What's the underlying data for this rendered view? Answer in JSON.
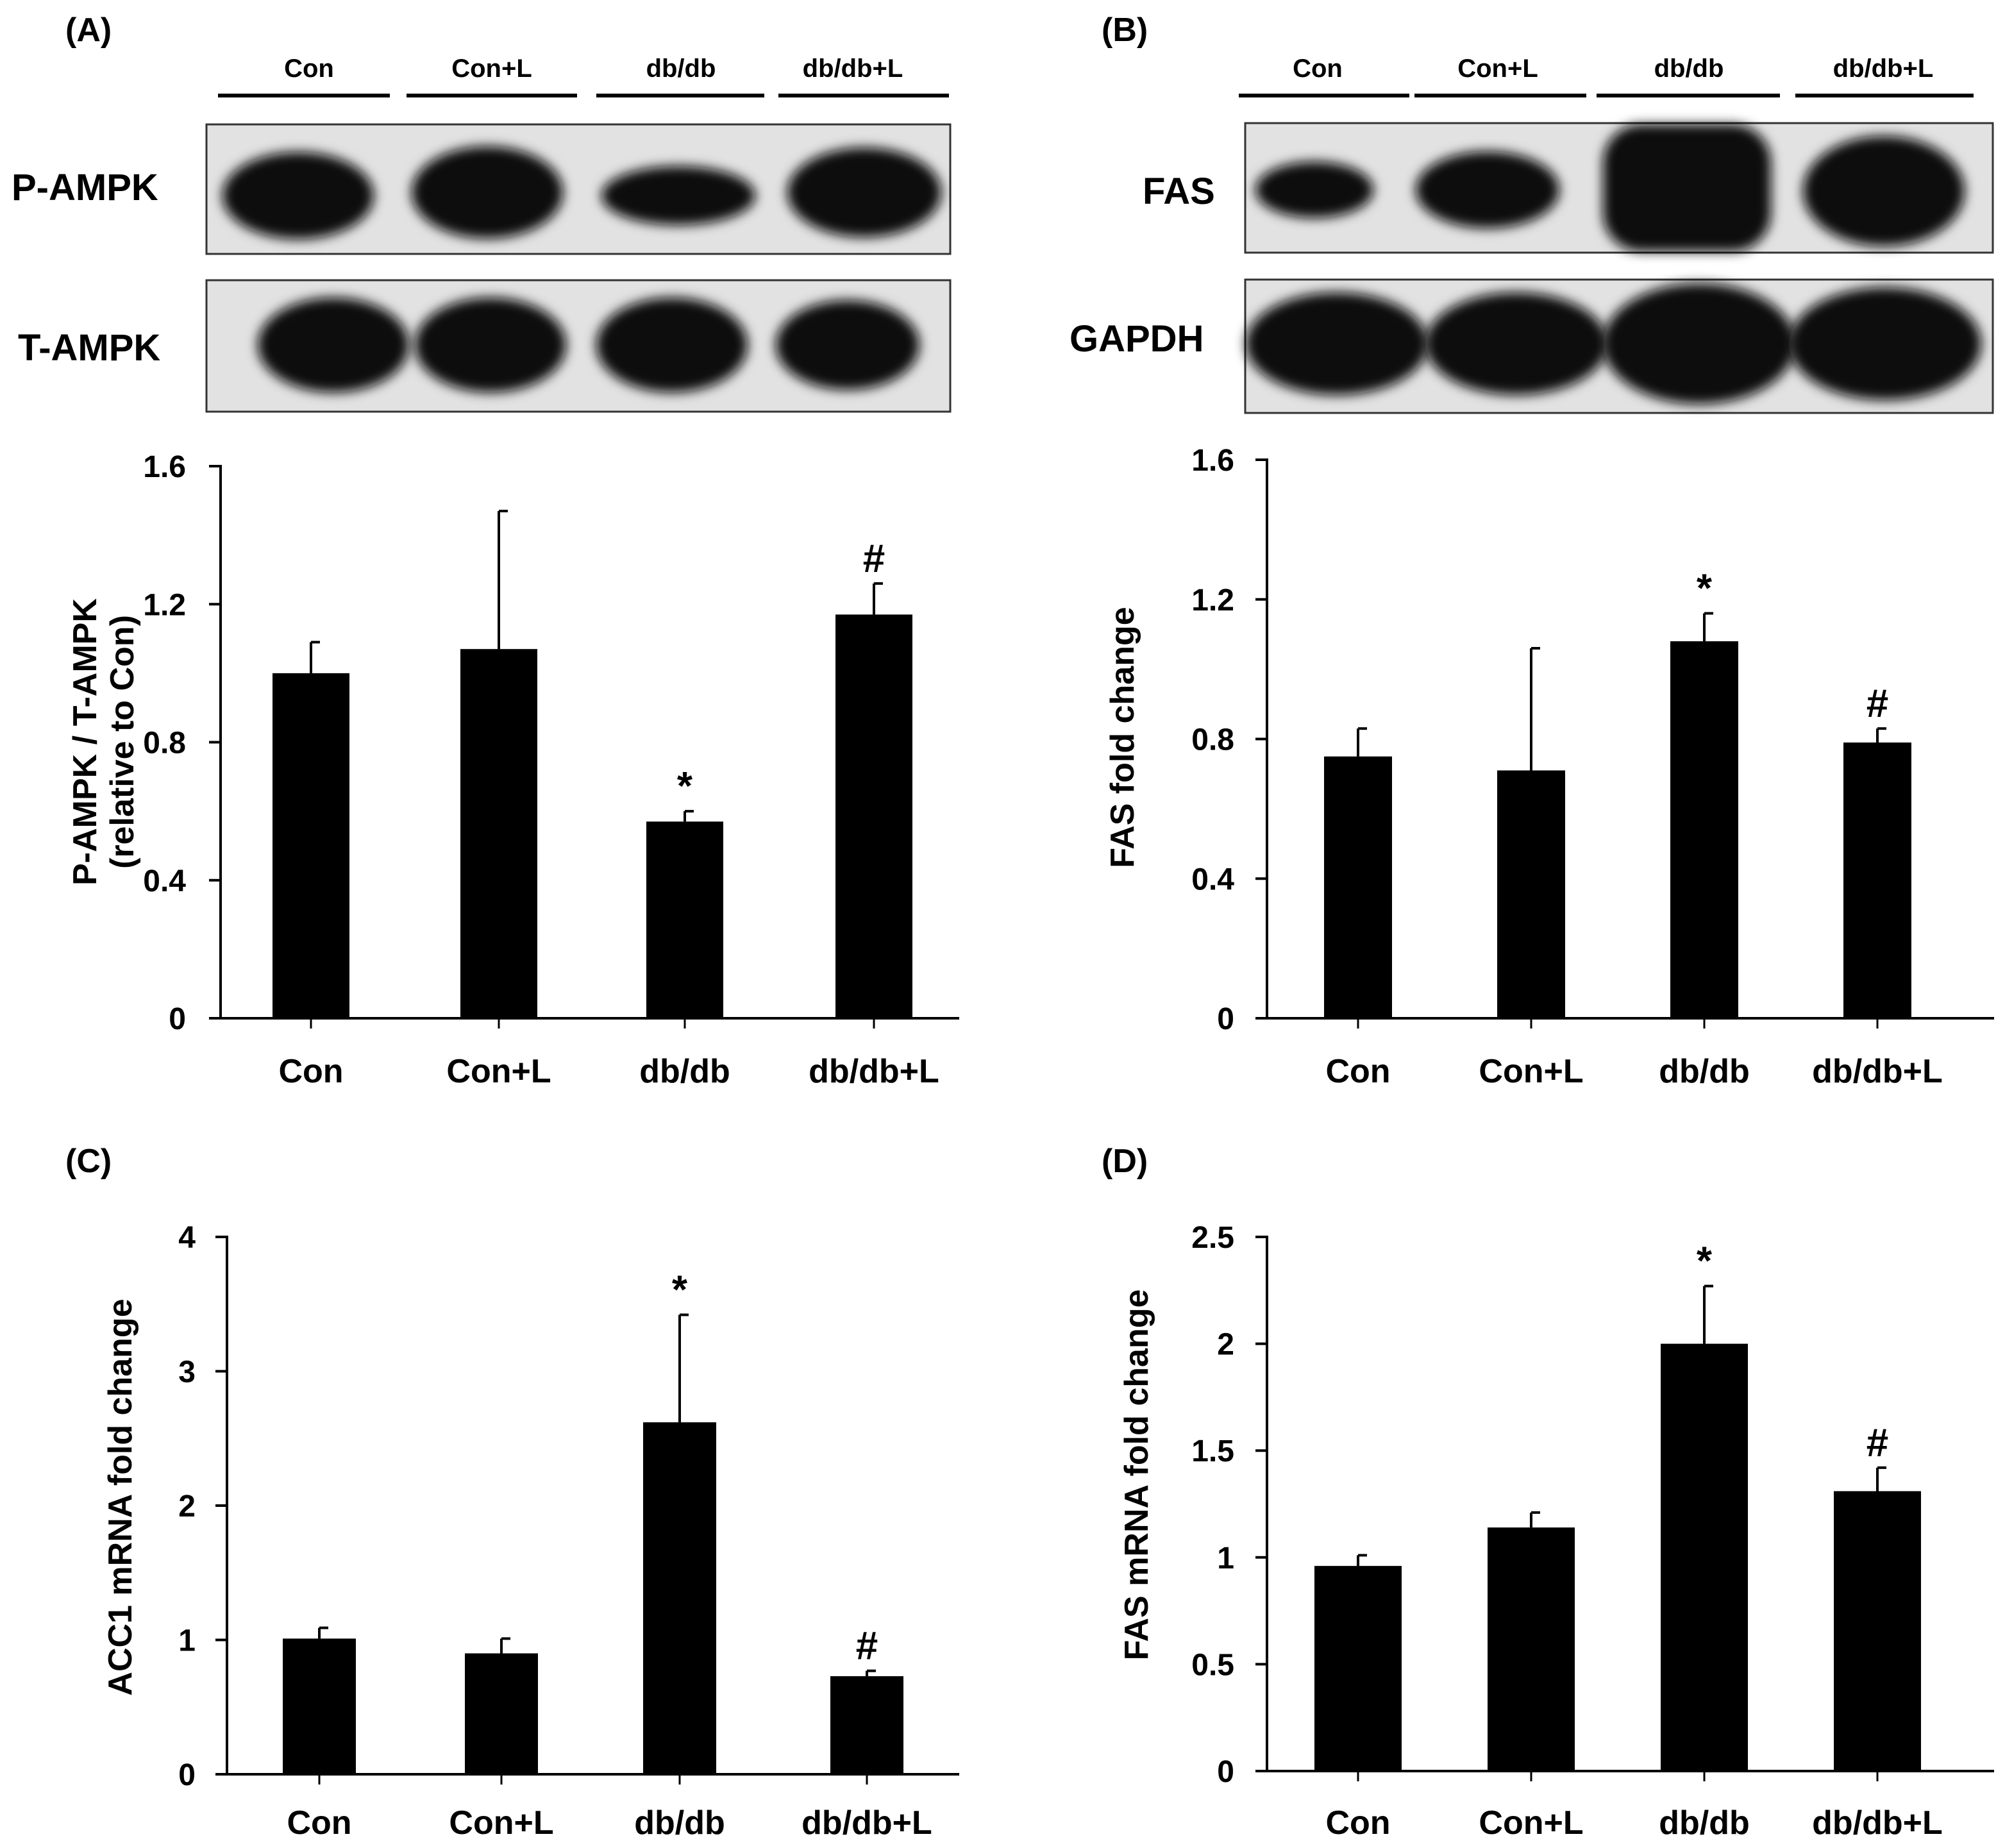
{
  "panel_labels": [
    "(A)",
    "(B)",
    "(C)",
    "(D)"
  ],
  "blots": [
    {
      "groups": [
        "Con",
        "Con+L",
        "db/db",
        "db/db+L"
      ],
      "rows": [
        {
          "label": "P-AMPK",
          "intensity": [
            1.0,
            1.0,
            0.65,
            1.0
          ]
        },
        {
          "label": "T-AMPK",
          "intensity": [
            1.0,
            1.0,
            1.0,
            1.0
          ]
        }
      ]
    },
    {
      "groups": [
        "Con",
        "Con+L",
        "db/db",
        "db/db+L"
      ],
      "rows": [
        {
          "label": "FAS",
          "intensity": [
            0.6,
            0.85,
            1.0,
            1.0
          ]
        },
        {
          "label": "GAPDH",
          "intensity": [
            1.0,
            1.0,
            1.0,
            1.0
          ]
        }
      ]
    }
  ],
  "chart_data": [
    {
      "type": "bar",
      "panel": "(A)",
      "categories": [
        "Con",
        "Con+L",
        "db/db",
        "db/db+L"
      ],
      "values": [
        1.0,
        1.07,
        0.57,
        1.17
      ],
      "errors": [
        0.09,
        0.4,
        0.03,
        0.09
      ],
      "marks": [
        "",
        "",
        "*",
        "#"
      ],
      "ylabel": "P-AMPK / T-AMPK",
      "ylabel2": "(relative to Con)",
      "ylim": [
        0,
        1.6
      ],
      "yticks": [
        0,
        0.4,
        0.8,
        1.2,
        1.6
      ],
      "ytick_labels": [
        "0",
        "0.4",
        "0.8",
        "1.2",
        "1.6"
      ]
    },
    {
      "type": "bar",
      "panel": "(B)",
      "categories": [
        "Con",
        "Con+L",
        "db/db",
        "db/db+L"
      ],
      "values": [
        0.75,
        0.71,
        1.08,
        0.79
      ],
      "errors": [
        0.08,
        0.35,
        0.08,
        0.04
      ],
      "marks": [
        "",
        "",
        "*",
        "#"
      ],
      "ylabel": "FAS fold change",
      "ylim": [
        0,
        1.6
      ],
      "yticks": [
        0,
        0.4,
        0.8,
        1.2,
        1.6
      ],
      "ytick_labels": [
        "0",
        "0.4",
        "0.8",
        "1.2",
        "1.6"
      ]
    },
    {
      "type": "bar",
      "panel": "(C)",
      "categories": [
        "Con",
        "Con+L",
        "db/db",
        "db/db+L"
      ],
      "values": [
        1.01,
        0.9,
        2.62,
        0.73
      ],
      "errors": [
        0.08,
        0.11,
        0.8,
        0.04
      ],
      "marks": [
        "",
        "",
        "*",
        "#"
      ],
      "ylabel": "ACC1 mRNA fold change",
      "ylim": [
        0,
        4
      ],
      "yticks": [
        0,
        1,
        2,
        3,
        4
      ],
      "ytick_labels": [
        "0",
        "1",
        "2",
        "3",
        "4"
      ]
    },
    {
      "type": "bar",
      "panel": "(D)",
      "categories": [
        "Con",
        "Con+L",
        "db/db",
        "db/db+L"
      ],
      "values": [
        0.96,
        1.14,
        2.0,
        1.31
      ],
      "errors": [
        0.05,
        0.07,
        0.27,
        0.11
      ],
      "marks": [
        "",
        "",
        "*",
        "#"
      ],
      "ylabel": "FAS mRNA fold change",
      "ylim": [
        0,
        2.5
      ],
      "yticks": [
        0,
        0.5,
        1,
        1.5,
        2,
        2.5
      ],
      "ytick_labels": [
        "0",
        "0.5",
        "1",
        "1.5",
        "2",
        "2.5"
      ]
    }
  ]
}
